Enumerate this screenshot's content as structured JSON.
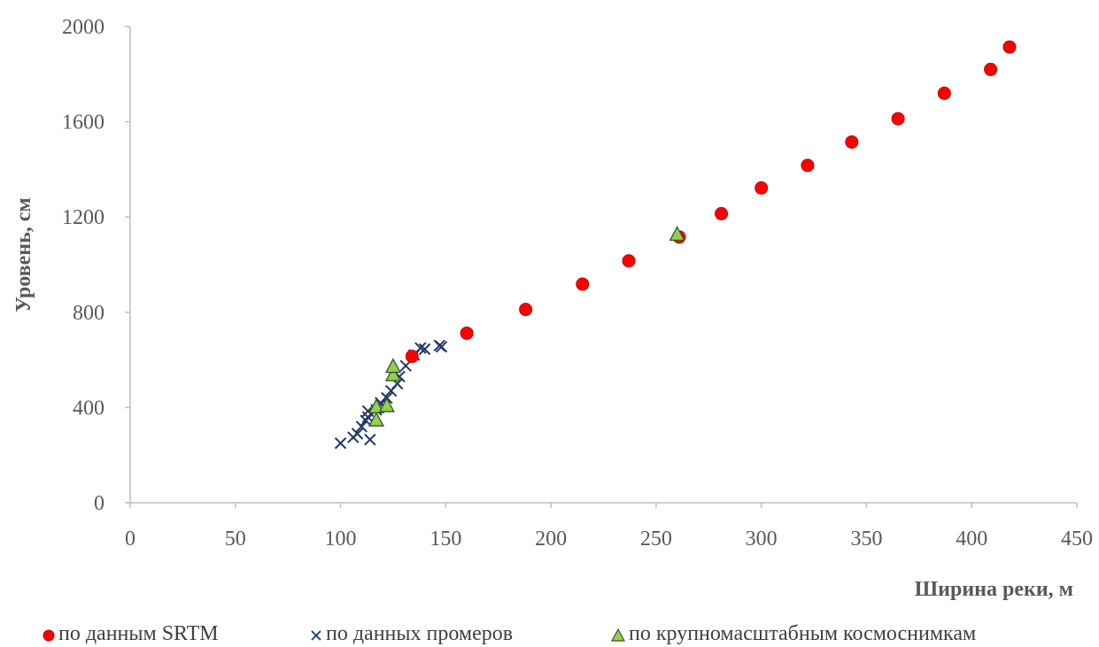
{
  "chart_data": {
    "type": "scatter",
    "xlabel": "Ширина реки, м",
    "ylabel": "Уровень, см",
    "xlim": [
      0,
      450
    ],
    "ylim": [
      0,
      2000
    ],
    "x_ticks": [
      0,
      50,
      100,
      150,
      200,
      250,
      300,
      350,
      400,
      450
    ],
    "y_ticks": [
      0,
      400,
      800,
      1200,
      1600,
      2000
    ],
    "grid": false,
    "legend_position": "bottom",
    "series": [
      {
        "name": "по данным SRTM",
        "marker": "circle",
        "color": "#ff0000",
        "points": [
          [
            134,
            615
          ],
          [
            160,
            712
          ],
          [
            188,
            812
          ],
          [
            215,
            918
          ],
          [
            237,
            1016
          ],
          [
            261,
            1116
          ],
          [
            281,
            1214
          ],
          [
            300,
            1322
          ],
          [
            322,
            1417
          ],
          [
            343,
            1515
          ],
          [
            365,
            1613
          ],
          [
            387,
            1720
          ],
          [
            409,
            1820
          ],
          [
            418,
            1914
          ]
        ]
      },
      {
        "name": "по данных промеров",
        "marker": "x",
        "color": "#1f3864",
        "points": [
          [
            100,
            250
          ],
          [
            106,
            275
          ],
          [
            108,
            290
          ],
          [
            110,
            320
          ],
          [
            112,
            345
          ],
          [
            113,
            360
          ],
          [
            113,
            385
          ],
          [
            114,
            265
          ],
          [
            117,
            390
          ],
          [
            119,
            420
          ],
          [
            122,
            440
          ],
          [
            124,
            470
          ],
          [
            127,
            500
          ],
          [
            128,
            530
          ],
          [
            131,
            575
          ],
          [
            135,
            620
          ],
          [
            138,
            650
          ],
          [
            140,
            645
          ],
          [
            147,
            660
          ],
          [
            148,
            655
          ]
        ]
      },
      {
        "name": "по крупномасштабным космоснимкам",
        "marker": "triangle",
        "color": "#92d050",
        "points": [
          [
            117,
            345
          ],
          [
            117,
            400
          ],
          [
            122,
            405
          ],
          [
            125,
            535
          ],
          [
            125,
            570
          ],
          [
            260,
            1125
          ]
        ]
      }
    ]
  }
}
